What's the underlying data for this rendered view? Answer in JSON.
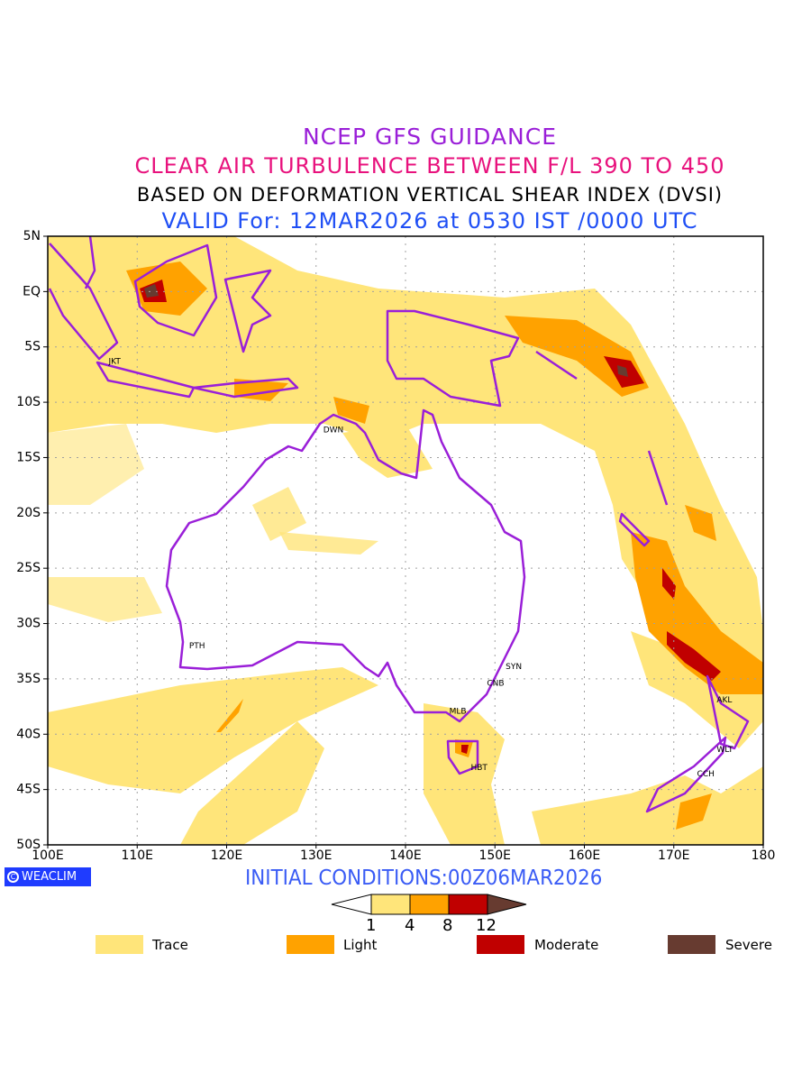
{
  "header": {
    "line1": "NCEP GFS GUIDANCE",
    "line2": "CLEAR AIR TURBULENCE BETWEEN F/L 390 TO 450",
    "line3": "BASED ON DEFORMATION VERTICAL SHEAR INDEX (DVSI)",
    "line4": "VALID For: 12MAR2026 at 0530 IST /0000 UTC"
  },
  "map": {
    "lon_range": [
      100,
      180
    ],
    "lat_range": [
      -50,
      5
    ],
    "lat_labels": [
      "5N",
      "EQ",
      "5S",
      "10S",
      "15S",
      "20S",
      "25S",
      "30S",
      "35S",
      "40S",
      "45S",
      "50S"
    ],
    "lon_labels": [
      "100E",
      "110E",
      "120E",
      "130E",
      "140E",
      "150E",
      "160E",
      "170E",
      "180"
    ],
    "cities": [
      {
        "name": "JKT",
        "lon": 106.8,
        "lat": -6.2
      },
      {
        "name": "DWN",
        "lon": 130.8,
        "lat": -12.4
      },
      {
        "name": "PTH",
        "lon": 115.8,
        "lat": -31.9
      },
      {
        "name": "SYN",
        "lon": 151.2,
        "lat": -33.8
      },
      {
        "name": "CNB",
        "lon": 149.1,
        "lat": -35.3
      },
      {
        "name": "MLB",
        "lon": 144.9,
        "lat": -37.8
      },
      {
        "name": "HBT",
        "lon": 147.3,
        "lat": -42.9
      },
      {
        "name": "AKL",
        "lon": 174.8,
        "lat": -36.8
      },
      {
        "name": "WLT",
        "lon": 174.8,
        "lat": -41.3
      },
      {
        "name": "CCH",
        "lon": 172.6,
        "lat": -43.5
      }
    ]
  },
  "footer": {
    "logo": "WEACLIM",
    "initial_conditions": "INITIAL CONDITIONS:00Z06MAR2026"
  },
  "colorbar": {
    "ticks": [
      "1",
      "4",
      "8",
      "12"
    ],
    "colors": [
      "#ffe57a",
      "#ffa200",
      "#c00000",
      "#673b30"
    ]
  },
  "legend": [
    {
      "label": "Trace",
      "color": "#ffe57a"
    },
    {
      "label": "Light",
      "color": "#ffa200"
    },
    {
      "label": "Moderate",
      "color": "#c00000"
    },
    {
      "label": "Severe",
      "color": "#673b30"
    }
  ],
  "colors": {
    "coast": "#9a1fd8",
    "title1": "#9a1fd8",
    "title2": "#e8127d",
    "title4": "#1f4ff5"
  }
}
